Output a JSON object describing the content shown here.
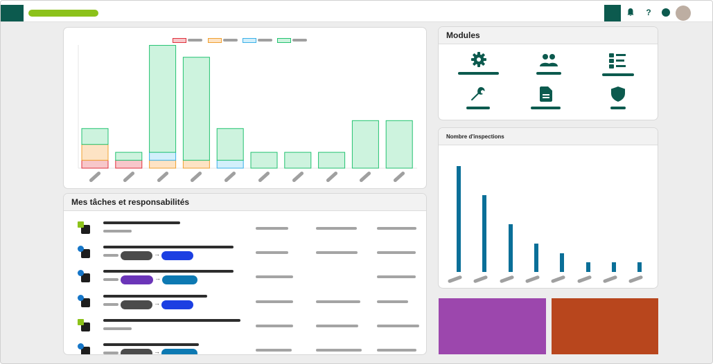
{
  "modules": {
    "title": "Modules",
    "items": [
      {
        "icon": "gear-icon"
      },
      {
        "icon": "users-icon"
      },
      {
        "icon": "list-icon"
      },
      {
        "icon": "wrench-icon"
      },
      {
        "icon": "document-icon"
      },
      {
        "icon": "shield-icon"
      }
    ]
  },
  "tasks": {
    "title": "Mes tâches et responsabilités",
    "rows": [
      {
        "marker": "green",
        "pills": []
      },
      {
        "marker": "blue",
        "pills": [
          "#4b4b4b",
          "#1c3fe2"
        ]
      },
      {
        "marker": "blue",
        "pills": [
          "#6b35b8",
          "#0d79b2"
        ]
      },
      {
        "marker": "blue",
        "pills": [
          "#4b4b4b",
          "#1c3fe2"
        ]
      },
      {
        "marker": "green",
        "pills": []
      },
      {
        "marker": "blue",
        "pills": [
          "#4b4b4b",
          "#0d79b2"
        ]
      }
    ]
  },
  "inspections": {
    "title": "Nombre d'inspections"
  },
  "colors": {
    "brand_dark": "#0c5a4e",
    "brand_lime": "#8cc21a",
    "tile_purple": "#9c47ad",
    "tile_orange": "#b8461d",
    "inspection_bar": "#0a6f98"
  },
  "chart_data": [
    {
      "type": "bar",
      "stacked": true,
      "categories": [
        "",
        "",
        "",
        "",
        "",
        "",
        "",
        "",
        "",
        ""
      ],
      "series": [
        {
          "color": "#e0313c",
          "values": [
            1,
            1,
            0,
            0,
            0,
            0,
            0,
            0,
            0,
            0
          ]
        },
        {
          "color": "#f0a030",
          "values": [
            2,
            0,
            1,
            1,
            0,
            0,
            0,
            0,
            0,
            0
          ]
        },
        {
          "color": "#3ab0e8",
          "values": [
            0,
            0,
            1,
            0,
            1,
            0,
            0,
            0,
            0,
            0
          ]
        },
        {
          "color": "#22c270",
          "values": [
            2,
            1,
            13.5,
            13,
            4,
            2,
            2,
            2,
            6,
            6
          ]
        }
      ],
      "grid": false,
      "legend_position": "top-center"
    },
    {
      "type": "bar",
      "title": "Nombre d'inspections",
      "categories": [
        "",
        "",
        "",
        "",
        "",
        "",
        "",
        ""
      ],
      "values": [
        100,
        73,
        45,
        27,
        18,
        9,
        9,
        9
      ],
      "ylim": [
        0,
        110
      ],
      "grid": false
    }
  ]
}
